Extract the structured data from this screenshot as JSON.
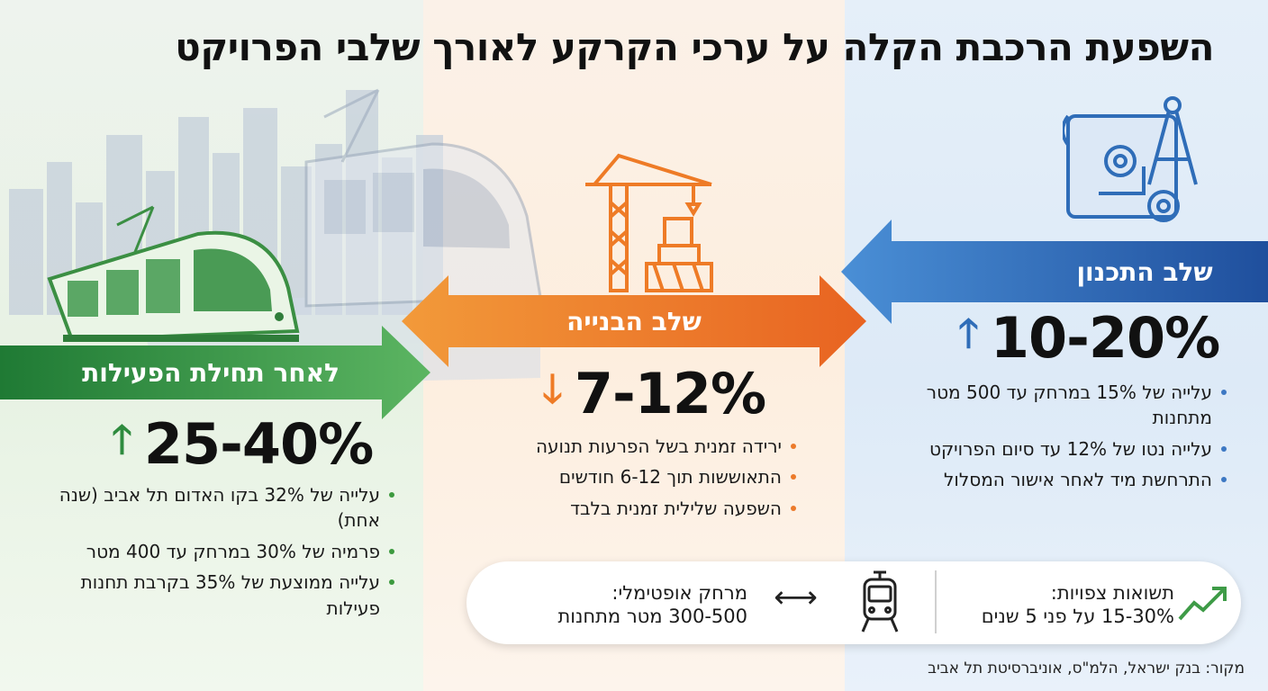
{
  "title": "השפעת הרכבת הקלה על ערכי הקרקע לאורך שלבי הפרויקט",
  "colors": {
    "green": "#2e8b3e",
    "orange": "#ee7b26",
    "blue": "#2f6db8"
  },
  "stages": {
    "operation": {
      "label": "לאחר תחילת הפעילות",
      "range": "25-40%",
      "direction": "up",
      "arrow_glyph": "🡑",
      "bullets": [
        "עלייה של 32% בקו האדום תל אביב (שנה אחת)",
        "פרמיה של 30% במרחק עד 400 מטר",
        "עלייה ממוצעת של 35% בקרבת תחנות פעילות"
      ]
    },
    "construction": {
      "label": "שלב הבנייה",
      "range": "7-12%",
      "direction": "down",
      "arrow_glyph": "🡓",
      "bullets": [
        "ירידה זמנית בשל הפרעות תנועה",
        "התאוששות תוך 6-12 חודשים",
        "השפעה שלילית זמנית בלבד"
      ]
    },
    "planning": {
      "label": "שלב התכנון",
      "range": "10-20%",
      "direction": "up",
      "arrow_glyph": "🡑",
      "bullets": [
        "עלייה של 15% במרחק עד 500 מטר מתחנות",
        "עלייה נטו של 12% עד סיום הפרויקט",
        "התרחשת מיד לאחר אישור המסלול"
      ]
    }
  },
  "info": {
    "returns_label": "תשואות צפויות:",
    "returns_value": "15-30% על פני 5 שנים",
    "distance_label": "מרחק אופטימלי:",
    "distance_value": "300-500 מטר מתחנות",
    "distance_arrow": "⟷"
  },
  "source": "מקור: בנק ישראל, הלמ\"ס, אוניברסיטת תל אביב"
}
